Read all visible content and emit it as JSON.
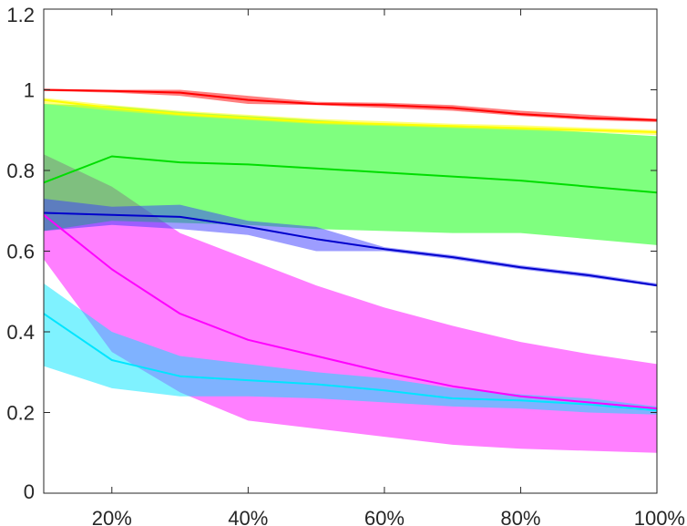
{
  "chart_data": {
    "type": "line",
    "title": "",
    "xlabel": "",
    "ylabel": "",
    "x": [
      10,
      20,
      30,
      40,
      50,
      60,
      70,
      80,
      90,
      100
    ],
    "xlim": [
      10,
      100
    ],
    "ylim": [
      0,
      1.2
    ],
    "x_ticks": [
      20,
      40,
      60,
      80,
      100
    ],
    "x_tick_labels": [
      "20%",
      "40%",
      "60%",
      "80%",
      "100%"
    ],
    "y_ticks": [
      0,
      0.2,
      0.4,
      0.6,
      0.8,
      1,
      1.2
    ],
    "y_tick_labels": [
      "0",
      "0.2",
      "0.4",
      "0.6",
      "0.8",
      "1",
      "1.2"
    ],
    "grid": false,
    "legend": "none",
    "series": [
      {
        "color": "#ff00ff",
        "band_color": "#ff00ff",
        "values": [
          0.69,
          0.555,
          0.445,
          0.38,
          0.34,
          0.3,
          0.265,
          0.24,
          0.225,
          0.21
        ],
        "lower": [
          0.58,
          0.35,
          0.25,
          0.18,
          0.16,
          0.14,
          0.12,
          0.11,
          0.105,
          0.1
        ],
        "upper": [
          0.84,
          0.76,
          0.645,
          0.58,
          0.515,
          0.46,
          0.415,
          0.375,
          0.345,
          0.32
        ]
      },
      {
        "color": "#00e5ff",
        "band_color": "#00e5ff",
        "values": [
          0.445,
          0.33,
          0.29,
          0.28,
          0.27,
          0.255,
          0.235,
          0.23,
          0.22,
          0.205
        ],
        "lower": [
          0.315,
          0.26,
          0.24,
          0.24,
          0.235,
          0.225,
          0.215,
          0.21,
          0.2,
          0.195
        ],
        "upper": [
          0.52,
          0.4,
          0.34,
          0.32,
          0.3,
          0.285,
          0.26,
          0.245,
          0.235,
          0.215
        ]
      },
      {
        "color": "#00dd00",
        "band_color": "#00ff00",
        "values": [
          0.77,
          0.835,
          0.82,
          0.815,
          0.805,
          0.795,
          0.785,
          0.775,
          0.76,
          0.745
        ],
        "lower": [
          0.65,
          0.675,
          0.67,
          0.665,
          0.655,
          0.65,
          0.645,
          0.645,
          0.63,
          0.615
        ],
        "upper": [
          0.965,
          0.96,
          0.945,
          0.935,
          0.925,
          0.915,
          0.91,
          0.905,
          0.895,
          0.885
        ]
      },
      {
        "color": "#0000cc",
        "band_color": "#3c3cff",
        "values": [
          0.695,
          0.69,
          0.685,
          0.66,
          0.63,
          0.605,
          0.585,
          0.56,
          0.54,
          0.515
        ],
        "lower": [
          0.65,
          0.665,
          0.655,
          0.64,
          0.6,
          0.6,
          0.58,
          0.555,
          0.535,
          0.512
        ],
        "upper": [
          0.73,
          0.71,
          0.715,
          0.675,
          0.66,
          0.61,
          0.59,
          0.565,
          0.545,
          0.52
        ]
      },
      {
        "color": "#ffff00",
        "band_color": "#ffff00",
        "values": [
          0.975,
          0.955,
          0.94,
          0.93,
          0.92,
          0.915,
          0.91,
          0.905,
          0.9,
          0.895
        ],
        "lower": [
          0.965,
          0.948,
          0.935,
          0.925,
          0.915,
          0.91,
          0.905,
          0.9,
          0.895,
          0.888
        ],
        "upper": [
          0.98,
          0.962,
          0.948,
          0.938,
          0.928,
          0.922,
          0.916,
          0.912,
          0.906,
          0.9
        ]
      },
      {
        "color": "#ff0000",
        "band_color": "#ff0000",
        "values": [
          1.0,
          0.997,
          0.993,
          0.975,
          0.965,
          0.962,
          0.955,
          0.94,
          0.93,
          0.925
        ],
        "lower": [
          0.997,
          0.993,
          0.985,
          0.965,
          0.962,
          0.955,
          0.948,
          0.935,
          0.925,
          0.92
        ],
        "upper": [
          1.002,
          1.0,
          1.0,
          0.985,
          0.97,
          0.968,
          0.962,
          0.948,
          0.938,
          0.928
        ]
      }
    ]
  }
}
